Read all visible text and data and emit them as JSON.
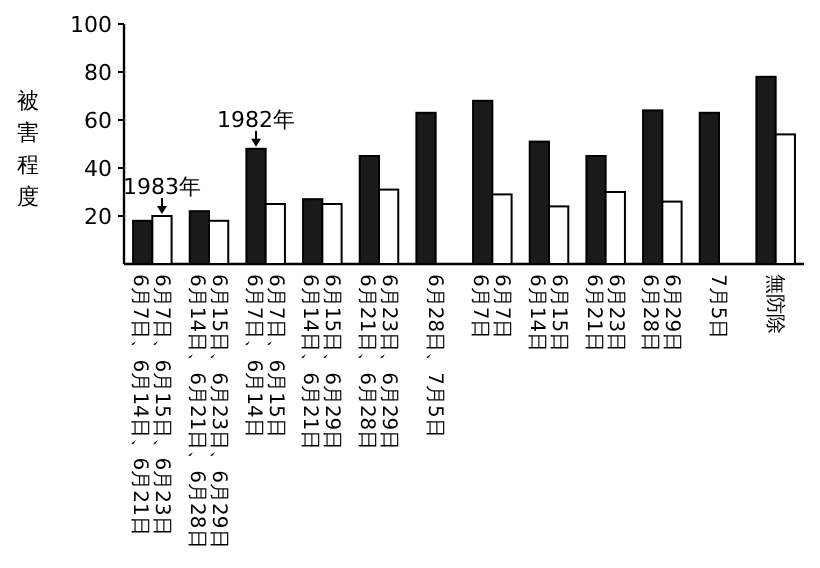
{
  "chart_data": {
    "type": "bar",
    "ylabel": "被害程度",
    "categories": [
      "6月7日、6月14日、6月21日\n6月7日、6月15日、6月23日",
      "6月14日、6月21日、6月28日\n6月15日、6月23日、6月29日",
      "6月7日、6月14日\n6月7日、6月15日",
      "6月14日、6月21日\n6月15日、6月29日",
      "6月21日、6月28日\n6月23日、6月29日",
      "6月28日、7月5日",
      "6月7日\n6月7日",
      "6月14日\n6月15日",
      "6月21日\n6月23日",
      "6月28日\n6月29日",
      "7月5日",
      "無防除"
    ],
    "series": [
      {
        "color": "#1a1a1a",
        "values": [
          18,
          22,
          48,
          27,
          45,
          63,
          68,
          51,
          45,
          64,
          63,
          78
        ]
      },
      {
        "color": "#ffffff",
        "values": [
          20,
          18,
          25,
          25,
          31,
          null,
          29,
          24,
          30,
          26,
          null,
          54
        ]
      }
    ],
    "ylim": [
      0,
      100
    ],
    "yticks": [
      20,
      40,
      60,
      80,
      100
    ],
    "annotations": [
      {
        "text": "1983年",
        "x": "6月7日、6月14日、6月21日\n6月7日、6月15日、6月23日",
        "y": 20
      },
      {
        "text": "1982年",
        "x": "6月7日、6月14日\n6月7日、6月15日",
        "y": 48
      }
    ]
  }
}
